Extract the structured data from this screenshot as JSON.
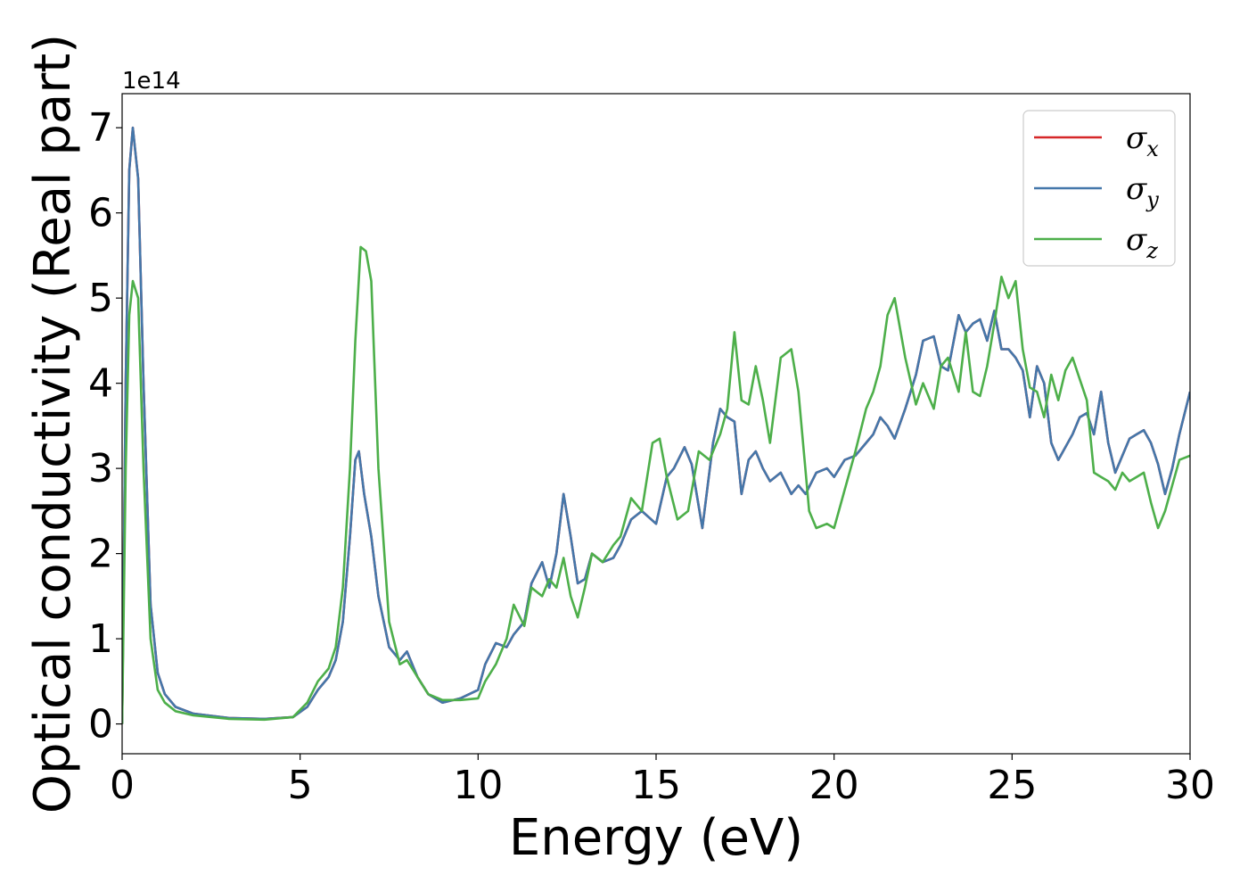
{
  "chart_data": {
    "type": "line",
    "xlabel": "Energy (eV)",
    "ylabel": "Optical conductivity (Real part)",
    "offset_text": "1e14",
    "xlim": [
      0,
      30
    ],
    "ylim": [
      -0.35,
      7.4
    ],
    "y_scale_factor": 100000000000000.0,
    "xticks": [
      0,
      5,
      10,
      15,
      20,
      25,
      30
    ],
    "yticks": [
      0,
      1,
      2,
      3,
      4,
      5,
      6,
      7
    ],
    "grid": false,
    "legend_position": "top-right",
    "series": [
      {
        "name": "σx",
        "base": "σ",
        "subscript": "x",
        "color": "#d62728",
        "x": [
          0,
          0.1,
          0.2,
          0.3,
          0.45,
          0.6,
          0.8,
          1.0,
          1.2,
          1.5,
          2,
          3,
          4,
          4.8,
          5.2,
          5.5,
          5.8,
          6.0,
          6.2,
          6.4,
          6.55,
          6.65,
          6.8,
          7.0,
          7.2,
          7.5,
          7.8,
          8.0,
          8.3,
          8.6,
          9.0,
          9.5,
          10.0,
          10.2,
          10.5,
          10.8,
          11.0,
          11.3,
          11.5,
          11.8,
          12.0,
          12.2,
          12.4,
          12.6,
          12.8,
          13.0,
          13.2,
          13.5,
          13.8,
          14.0,
          14.3,
          14.6,
          15.0,
          15.3,
          15.5,
          15.8,
          16.0,
          16.3,
          16.6,
          16.8,
          17.0,
          17.2,
          17.4,
          17.6,
          17.8,
          18.0,
          18.2,
          18.5,
          18.8,
          19.0,
          19.2,
          19.5,
          19.8,
          20.0,
          20.3,
          20.6,
          20.9,
          21.1,
          21.3,
          21.5,
          21.7,
          22.0,
          22.3,
          22.5,
          22.8,
          23.0,
          23.2,
          23.5,
          23.7,
          23.9,
          24.1,
          24.3,
          24.5,
          24.7,
          24.9,
          25.1,
          25.3,
          25.5,
          25.7,
          25.9,
          26.1,
          26.3,
          26.5,
          26.7,
          26.9,
          27.1,
          27.3,
          27.5,
          27.7,
          27.9,
          28.1,
          28.3,
          28.5,
          28.7,
          28.9,
          29.1,
          29.3,
          29.5,
          29.7,
          30.0
        ],
        "y": [
          0,
          4.0,
          6.5,
          7.0,
          6.4,
          4.0,
          1.4,
          0.6,
          0.35,
          0.2,
          0.12,
          0.07,
          0.06,
          0.08,
          0.2,
          0.4,
          0.55,
          0.75,
          1.2,
          2.2,
          3.1,
          3.2,
          2.7,
          2.2,
          1.5,
          0.9,
          0.75,
          0.85,
          0.55,
          0.35,
          0.25,
          0.3,
          0.4,
          0.7,
          0.95,
          0.9,
          1.05,
          1.2,
          1.65,
          1.9,
          1.6,
          2.0,
          2.7,
          2.2,
          1.65,
          1.7,
          2.0,
          1.9,
          1.95,
          2.1,
          2.4,
          2.5,
          2.35,
          2.9,
          3.0,
          3.25,
          3.05,
          2.3,
          3.3,
          3.7,
          3.6,
          3.55,
          2.7,
          3.1,
          3.2,
          3.0,
          2.85,
          2.95,
          2.7,
          2.8,
          2.7,
          2.95,
          3.0,
          2.9,
          3.1,
          3.15,
          3.3,
          3.4,
          3.6,
          3.5,
          3.35,
          3.7,
          4.1,
          4.5,
          4.55,
          4.2,
          4.15,
          4.8,
          4.6,
          4.7,
          4.75,
          4.5,
          4.85,
          4.4,
          4.4,
          4.3,
          4.15,
          3.6,
          4.2,
          4.0,
          3.3,
          3.1,
          3.25,
          3.4,
          3.6,
          3.65,
          3.4,
          3.9,
          3.3,
          2.95,
          3.15,
          3.35,
          3.4,
          3.45,
          3.3,
          3.05,
          2.7,
          3.0,
          3.4,
          3.9
        ]
      },
      {
        "name": "σy",
        "base": "σ",
        "subscript": "y",
        "color": "#4477aa",
        "x": [
          0,
          0.1,
          0.2,
          0.3,
          0.45,
          0.6,
          0.8,
          1.0,
          1.2,
          1.5,
          2,
          3,
          4,
          4.8,
          5.2,
          5.5,
          5.8,
          6.0,
          6.2,
          6.4,
          6.55,
          6.65,
          6.8,
          7.0,
          7.2,
          7.5,
          7.8,
          8.0,
          8.3,
          8.6,
          9.0,
          9.5,
          10.0,
          10.2,
          10.5,
          10.8,
          11.0,
          11.3,
          11.5,
          11.8,
          12.0,
          12.2,
          12.4,
          12.6,
          12.8,
          13.0,
          13.2,
          13.5,
          13.8,
          14.0,
          14.3,
          14.6,
          15.0,
          15.3,
          15.5,
          15.8,
          16.0,
          16.3,
          16.6,
          16.8,
          17.0,
          17.2,
          17.4,
          17.6,
          17.8,
          18.0,
          18.2,
          18.5,
          18.8,
          19.0,
          19.2,
          19.5,
          19.8,
          20.0,
          20.3,
          20.6,
          20.9,
          21.1,
          21.3,
          21.5,
          21.7,
          22.0,
          22.3,
          22.5,
          22.8,
          23.0,
          23.2,
          23.5,
          23.7,
          23.9,
          24.1,
          24.3,
          24.5,
          24.7,
          24.9,
          25.1,
          25.3,
          25.5,
          25.7,
          25.9,
          26.1,
          26.3,
          26.5,
          26.7,
          26.9,
          27.1,
          27.3,
          27.5,
          27.7,
          27.9,
          28.1,
          28.3,
          28.5,
          28.7,
          28.9,
          29.1,
          29.3,
          29.5,
          29.7,
          30.0
        ],
        "y": [
          0,
          4.0,
          6.5,
          7.0,
          6.4,
          4.0,
          1.4,
          0.6,
          0.35,
          0.2,
          0.12,
          0.07,
          0.06,
          0.08,
          0.2,
          0.4,
          0.55,
          0.75,
          1.2,
          2.2,
          3.1,
          3.2,
          2.7,
          2.2,
          1.5,
          0.9,
          0.75,
          0.85,
          0.55,
          0.35,
          0.25,
          0.3,
          0.4,
          0.7,
          0.95,
          0.9,
          1.05,
          1.2,
          1.65,
          1.9,
          1.6,
          2.0,
          2.7,
          2.2,
          1.65,
          1.7,
          2.0,
          1.9,
          1.95,
          2.1,
          2.4,
          2.5,
          2.35,
          2.9,
          3.0,
          3.25,
          3.05,
          2.3,
          3.3,
          3.7,
          3.6,
          3.55,
          2.7,
          3.1,
          3.2,
          3.0,
          2.85,
          2.95,
          2.7,
          2.8,
          2.7,
          2.95,
          3.0,
          2.9,
          3.1,
          3.15,
          3.3,
          3.4,
          3.6,
          3.5,
          3.35,
          3.7,
          4.1,
          4.5,
          4.55,
          4.2,
          4.15,
          4.8,
          4.6,
          4.7,
          4.75,
          4.5,
          4.85,
          4.4,
          4.4,
          4.3,
          4.15,
          3.6,
          4.2,
          4.0,
          3.3,
          3.1,
          3.25,
          3.4,
          3.6,
          3.65,
          3.4,
          3.9,
          3.3,
          2.95,
          3.15,
          3.35,
          3.4,
          3.45,
          3.3,
          3.05,
          2.7,
          3.0,
          3.4,
          3.9
        ]
      },
      {
        "name": "σz",
        "base": "σ",
        "subscript": "z",
        "color": "#4daf4a",
        "x": [
          0,
          0.1,
          0.2,
          0.3,
          0.45,
          0.6,
          0.8,
          1.0,
          1.2,
          1.5,
          2,
          3,
          4,
          4.8,
          5.2,
          5.5,
          5.8,
          6.0,
          6.2,
          6.4,
          6.55,
          6.7,
          6.85,
          7.0,
          7.2,
          7.5,
          7.8,
          8.0,
          8.3,
          8.6,
          9.0,
          9.5,
          10.0,
          10.2,
          10.5,
          10.8,
          11.0,
          11.3,
          11.5,
          11.8,
          12.0,
          12.2,
          12.4,
          12.6,
          12.8,
          13.0,
          13.2,
          13.5,
          13.8,
          14.0,
          14.3,
          14.6,
          14.9,
          15.1,
          15.3,
          15.6,
          15.9,
          16.2,
          16.5,
          16.8,
          17.0,
          17.2,
          17.4,
          17.6,
          17.8,
          18.0,
          18.2,
          18.5,
          18.8,
          19.0,
          19.3,
          19.5,
          19.8,
          20.0,
          20.3,
          20.6,
          20.9,
          21.1,
          21.3,
          21.5,
          21.7,
          22.0,
          22.3,
          22.5,
          22.8,
          23.0,
          23.2,
          23.5,
          23.7,
          23.9,
          24.1,
          24.3,
          24.5,
          24.7,
          24.9,
          25.1,
          25.3,
          25.5,
          25.7,
          25.9,
          26.1,
          26.3,
          26.5,
          26.7,
          26.9,
          27.1,
          27.3,
          27.5,
          27.7,
          27.9,
          28.1,
          28.3,
          28.5,
          28.7,
          28.9,
          29.1,
          29.3,
          29.5,
          29.7,
          30.0
        ],
        "y": [
          0,
          3.0,
          4.8,
          5.2,
          5.0,
          3.0,
          1.0,
          0.4,
          0.25,
          0.15,
          0.1,
          0.06,
          0.05,
          0.08,
          0.25,
          0.5,
          0.65,
          0.9,
          1.6,
          3.0,
          4.5,
          5.6,
          5.55,
          5.2,
          3.0,
          1.2,
          0.7,
          0.75,
          0.55,
          0.35,
          0.28,
          0.28,
          0.3,
          0.5,
          0.7,
          1.0,
          1.4,
          1.15,
          1.6,
          1.5,
          1.7,
          1.6,
          1.95,
          1.5,
          1.25,
          1.6,
          2.0,
          1.9,
          2.1,
          2.2,
          2.65,
          2.5,
          3.3,
          3.35,
          2.9,
          2.4,
          2.5,
          3.2,
          3.1,
          3.4,
          3.7,
          4.6,
          3.8,
          3.75,
          4.2,
          3.8,
          3.3,
          4.3,
          4.4,
          3.9,
          2.5,
          2.3,
          2.35,
          2.3,
          2.75,
          3.2,
          3.7,
          3.9,
          4.2,
          4.8,
          5.0,
          4.3,
          3.75,
          4.0,
          3.7,
          4.2,
          4.3,
          3.9,
          4.6,
          3.9,
          3.85,
          4.2,
          4.7,
          5.25,
          5.0,
          5.2,
          4.4,
          3.95,
          3.9,
          3.6,
          4.1,
          3.8,
          4.15,
          4.3,
          4.05,
          3.8,
          2.95,
          2.9,
          2.85,
          2.75,
          2.95,
          2.85,
          2.9,
          2.95,
          2.6,
          2.3,
          2.5,
          2.8,
          3.1,
          3.15
        ]
      }
    ]
  }
}
